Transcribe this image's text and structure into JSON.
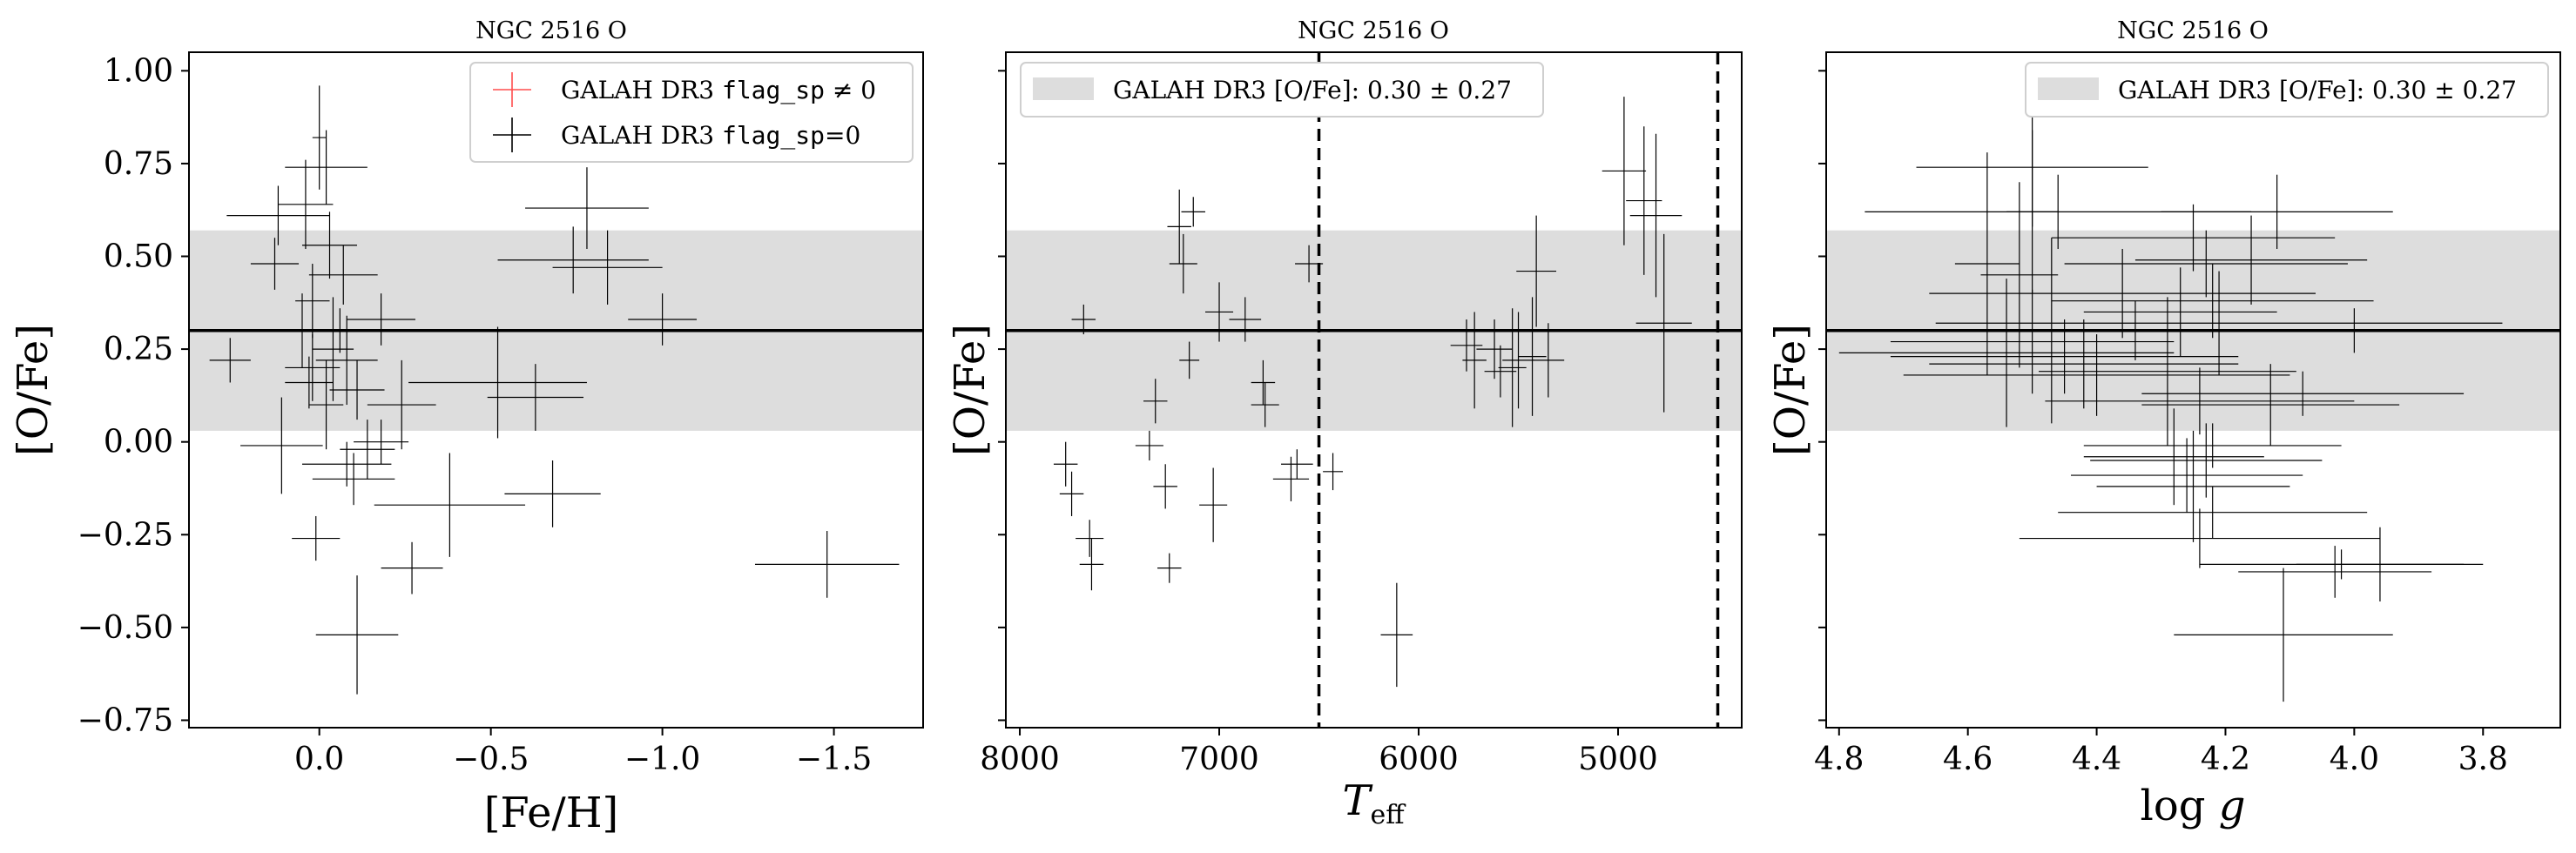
{
  "chart_data": [
    {
      "type": "scatter",
      "title": "NGC 2516 O",
      "xlabel": "[Fe/H]",
      "ylabel": "[O/Fe]",
      "xlim": [
        0.38,
        -1.76
      ],
      "ylim": [
        -0.77,
        1.05
      ],
      "xticks": [
        0.0,
        -0.5,
        -1.0,
        -1.5
      ],
      "xtick_labels": [
        "0.0",
        "−0.5",
        "−1.0",
        "−1.5"
      ],
      "yticks": [
        -0.75,
        -0.5,
        -0.25,
        0.0,
        0.25,
        0.5,
        0.75,
        1.0
      ],
      "ytick_labels": [
        "−0.75",
        "−0.50",
        "−0.25",
        "0.00",
        "0.25",
        "0.50",
        "0.75",
        "1.00"
      ],
      "band": {
        "center": 0.3,
        "err": 0.27
      },
      "legend": {
        "position": "top-right",
        "entries": [
          {
            "pre": "GALAH DR3 ",
            "code": "flag_sp",
            "post": " ≠ 0",
            "color": "#ff4d4d"
          },
          {
            "pre": "GALAH DR3 ",
            "code": "flag_sp",
            "post": "=0",
            "color": "#000000"
          }
        ]
      },
      "series": [
        {
          "name": "GALAH DR3 flag_sp=0",
          "points": [
            [
              0.0,
              0.82,
              0.02,
              0.14
            ],
            [
              -0.02,
              0.74,
              0.12,
              0.1
            ],
            [
              0.12,
              0.61,
              0.15,
              0.08
            ],
            [
              0.04,
              0.64,
              0.08,
              0.12
            ],
            [
              -0.03,
              0.53,
              0.08,
              0.09
            ],
            [
              -0.07,
              0.45,
              0.1,
              0.08
            ],
            [
              0.13,
              0.48,
              0.07,
              0.07
            ],
            [
              0.02,
              0.38,
              0.05,
              0.1
            ],
            [
              0.05,
              0.3,
              0.06,
              0.1
            ],
            [
              -0.04,
              0.25,
              0.06,
              0.14
            ],
            [
              0.02,
              0.2,
              0.08,
              0.09
            ],
            [
              0.03,
              0.16,
              0.07,
              0.07
            ],
            [
              -0.08,
              0.22,
              0.09,
              0.12
            ],
            [
              -0.11,
              0.14,
              0.08,
              0.08
            ],
            [
              -0.02,
              0.1,
              0.05,
              0.12
            ],
            [
              -0.18,
              0.33,
              0.1,
              0.07
            ],
            [
              -0.06,
              0.3,
              0.11,
              0.06
            ],
            [
              0.26,
              0.22,
              0.06,
              0.06
            ],
            [
              0.11,
              -0.01,
              0.12,
              0.13
            ],
            [
              -0.08,
              -0.06,
              0.13,
              0.06
            ],
            [
              -0.1,
              -0.1,
              0.12,
              0.07
            ],
            [
              -0.14,
              -0.02,
              0.08,
              0.08
            ],
            [
              -0.24,
              0.1,
              0.1,
              0.12
            ],
            [
              -0.18,
              0.0,
              0.08,
              0.06
            ],
            [
              0.01,
              -0.26,
              0.07,
              0.06
            ],
            [
              -0.27,
              -0.34,
              0.09,
              0.07
            ],
            [
              -0.11,
              -0.52,
              0.12,
              0.16
            ],
            [
              -0.38,
              -0.17,
              0.22,
              0.14
            ],
            [
              -0.52,
              0.16,
              0.26,
              0.15
            ],
            [
              -0.63,
              0.12,
              0.14,
              0.09
            ],
            [
              -0.74,
              0.49,
              0.22,
              0.09
            ],
            [
              -0.78,
              0.63,
              0.18,
              0.11
            ],
            [
              -0.84,
              0.47,
              0.16,
              0.1
            ],
            [
              -0.68,
              -0.14,
              0.14,
              0.09
            ],
            [
              -1.0,
              0.33,
              0.1,
              0.07
            ],
            [
              -1.48,
              -0.33,
              0.21,
              0.09
            ]
          ]
        }
      ]
    },
    {
      "type": "scatter",
      "title": "NGC 2516 O",
      "xlabel": "T_eff",
      "ylabel": "[O/Fe]",
      "xlim": [
        8070,
        4380
      ],
      "ylim": [
        -0.77,
        1.05
      ],
      "xticks": [
        8000,
        7000,
        6000,
        5000
      ],
      "xtick_labels": [
        "8000",
        "7000",
        "6000",
        "5000"
      ],
      "band": {
        "center": 0.3,
        "err": 0.27
      },
      "vlines": [
        6500,
        4500
      ],
      "legend": {
        "position": "top-left",
        "entries": [
          {
            "text": "GALAH DR3 [O/Fe]: 0.30 ± 0.27"
          }
        ]
      },
      "series": [
        {
          "name": "GALAH DR3 flag_sp=0",
          "points": [
            [
              7680,
              0.33,
              60,
              0.04
            ],
            [
              7200,
              0.58,
              60,
              0.1
            ],
            [
              7180,
              0.48,
              70,
              0.08
            ],
            [
              7130,
              0.62,
              60,
              0.04
            ],
            [
              7000,
              0.35,
              70,
              0.08
            ],
            [
              7150,
              0.22,
              50,
              0.05
            ],
            [
              6870,
              0.33,
              80,
              0.06
            ],
            [
              6550,
              0.48,
              70,
              0.05
            ],
            [
              6780,
              0.16,
              60,
              0.06
            ],
            [
              6770,
              0.1,
              70,
              0.06
            ],
            [
              7320,
              0.11,
              60,
              0.06
            ],
            [
              7350,
              -0.01,
              70,
              0.04
            ],
            [
              7270,
              -0.12,
              60,
              0.06
            ],
            [
              7030,
              -0.17,
              70,
              0.1
            ],
            [
              6610,
              -0.06,
              80,
              0.04
            ],
            [
              6430,
              -0.08,
              50,
              0.05
            ],
            [
              6640,
              -0.1,
              90,
              0.06
            ],
            [
              7770,
              -0.06,
              60,
              0.06
            ],
            [
              7740,
              -0.14,
              60,
              0.06
            ],
            [
              7650,
              -0.26,
              70,
              0.05
            ],
            [
              7640,
              -0.33,
              60,
              0.07
            ],
            [
              7250,
              -0.34,
              60,
              0.04
            ],
            [
              6110,
              -0.52,
              80,
              0.14
            ],
            [
              5760,
              0.26,
              80,
              0.07
            ],
            [
              5720,
              0.22,
              60,
              0.13
            ],
            [
              5620,
              0.25,
              90,
              0.08
            ],
            [
              5590,
              0.19,
              80,
              0.07
            ],
            [
              5530,
              0.2,
              70,
              0.16
            ],
            [
              5500,
              0.22,
              80,
              0.13
            ],
            [
              5430,
              0.23,
              70,
              0.16
            ],
            [
              5410,
              0.46,
              100,
              0.15
            ],
            [
              5350,
              0.22,
              80,
              0.1
            ],
            [
              4970,
              0.73,
              110,
              0.2
            ],
            [
              4870,
              0.65,
              90,
              0.2
            ],
            [
              4810,
              0.61,
              130,
              0.22
            ],
            [
              4770,
              0.32,
              140,
              0.24
            ]
          ]
        }
      ]
    },
    {
      "type": "scatter",
      "title": "NGC 2516 O",
      "xlabel": "log g",
      "ylabel": "[O/Fe]",
      "xlim": [
        4.82,
        3.68
      ],
      "ylim": [
        -0.77,
        1.05
      ],
      "xticks": [
        4.8,
        4.6,
        4.4,
        4.2,
        4.0,
        3.8
      ],
      "xtick_labels": [
        "4.8",
        "4.6",
        "4.4",
        "4.2",
        "4.0",
        "3.8"
      ],
      "band": {
        "center": 0.3,
        "err": 0.27
      },
      "legend": {
        "position": "top-right",
        "entries": [
          {
            "text": "GALAH DR3 [O/Fe]: 0.30 ± 0.27"
          }
        ]
      },
      "series": [
        {
          "name": "GALAH DR3 flag_sp=0",
          "points": [
            [
              4.5,
              0.74,
              0.18,
              0.16
            ],
            [
              4.46,
              0.62,
              0.3,
              0.1
            ],
            [
              4.57,
              0.48,
              0.05,
              0.3
            ],
            [
              4.52,
              0.45,
              0.06,
              0.25
            ],
            [
              4.47,
              0.3,
              0.07,
              0.25
            ],
            [
              4.5,
              0.62,
              0.04,
              0.22
            ],
            [
              4.12,
              0.62,
              0.18,
              0.1
            ],
            [
              4.25,
              0.55,
              0.22,
              0.09
            ],
            [
              4.23,
              0.48,
              0.22,
              0.09
            ],
            [
              4.16,
              0.49,
              0.18,
              0.12
            ],
            [
              4.22,
              0.38,
              0.25,
              0.1
            ],
            [
              4.36,
              0.4,
              0.3,
              0.12
            ],
            [
              4.21,
              0.32,
              0.44,
              0.14
            ],
            [
              4.34,
              0.3,
              0.3,
              0.08
            ],
            [
              4.5,
              0.27,
              0.22,
              0.14
            ],
            [
              4.54,
              0.24,
              0.26,
              0.2
            ],
            [
              4.45,
              0.23,
              0.27,
              0.1
            ],
            [
              4.42,
              0.21,
              0.24,
              0.12
            ],
            [
              4.4,
              0.18,
              0.3,
              0.11
            ],
            [
              4.27,
              0.35,
              0.15,
              0.12
            ],
            [
              4.0,
              0.3,
              0.12,
              0.06
            ],
            [
              4.13,
              0.1,
              0.2,
              0.11
            ],
            [
              4.08,
              0.13,
              0.25,
              0.06
            ],
            [
              4.24,
              0.11,
              0.24,
              0.09
            ],
            [
              4.22,
              -0.01,
              0.2,
              0.06
            ],
            [
              4.23,
              -0.05,
              0.18,
              0.1
            ],
            [
              4.26,
              -0.09,
              0.18,
              0.1
            ],
            [
              4.25,
              -0.12,
              0.15,
              0.15
            ],
            [
              4.22,
              -0.19,
              0.24,
              0.07
            ],
            [
              4.24,
              -0.26,
              0.28,
              0.08
            ],
            [
              4.03,
              -0.35,
              0.15,
              0.07
            ],
            [
              3.96,
              -0.33,
              0.13,
              0.1
            ],
            [
              4.11,
              -0.52,
              0.17,
              0.18
            ],
            [
              4.02,
              -0.33,
              0.22,
              0.04
            ],
            [
              4.28,
              -0.04,
              0.14,
              0.13
            ],
            [
              4.29,
              0.19,
              0.2,
              0.2
            ]
          ]
        }
      ]
    }
  ]
}
